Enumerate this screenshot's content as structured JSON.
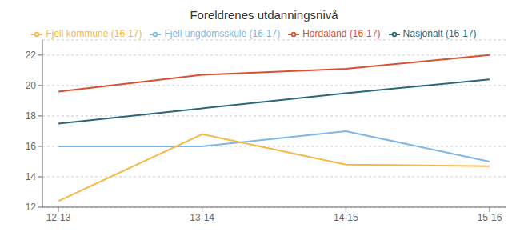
{
  "chart_data": {
    "type": "line",
    "title": "Foreldrenes utdanningsnivå",
    "categories": [
      "12-13",
      "13-14",
      "14-15",
      "15-16"
    ],
    "series": [
      {
        "name": "Fjell ungdomsskule (16-17)",
        "color": "#7EB6E8",
        "values": [
          16.0,
          16.0,
          17.0,
          15.0
        ]
      },
      {
        "name": "Fjell kommune (16-17)",
        "color": "#F5B942",
        "values": [
          12.4,
          16.8,
          14.8,
          14.7
        ]
      },
      {
        "name": "Hordaland (16-17)",
        "color": "#D94F30",
        "values": [
          19.6,
          20.7,
          21.1,
          22.0
        ]
      },
      {
        "name": "Nasjonalt (16-17)",
        "color": "#2B6777",
        "values": [
          17.5,
          18.5,
          19.5,
          20.4
        ]
      }
    ],
    "ylim": [
      12,
      23
    ],
    "yticks": [
      12,
      14,
      16,
      18,
      20,
      22
    ],
    "grid": true,
    "legend": "top"
  }
}
